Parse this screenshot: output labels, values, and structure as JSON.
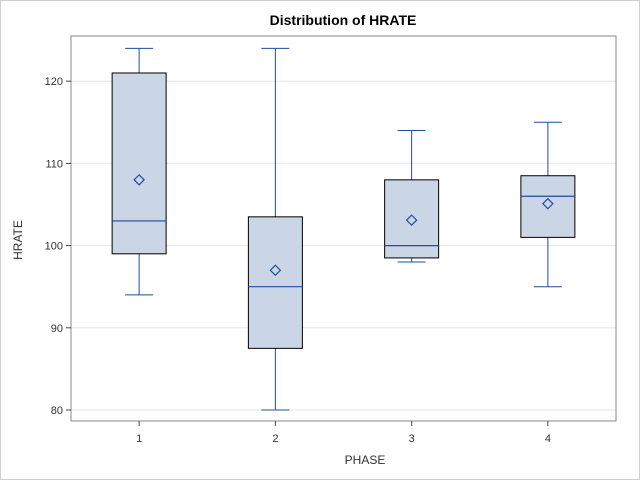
{
  "chart_data": {
    "type": "box",
    "title": "Distribution of HRATE",
    "xlabel": "PHASE",
    "ylabel": "HRATE",
    "categories": [
      "1",
      "2",
      "3",
      "4"
    ],
    "y_ticks": [
      80,
      90,
      100,
      110,
      120
    ],
    "ylim": [
      78.5,
      126
    ],
    "grid": true,
    "boxes": [
      {
        "category": "1",
        "min": 94,
        "q1": 99,
        "median": 103,
        "q3": 121,
        "max": 124,
        "mean": 108
      },
      {
        "category": "2",
        "min": 80,
        "q1": 87.5,
        "median": 95,
        "q3": 103.5,
        "max": 124,
        "mean": 97
      },
      {
        "category": "3",
        "min": 98,
        "q1": 98.5,
        "median": 100,
        "q3": 108,
        "max": 114,
        "mean": 103.1
      },
      {
        "category": "4",
        "min": 95,
        "q1": 101,
        "median": 106,
        "q3": 108.5,
        "max": 115,
        "mean": 105.1
      }
    ],
    "colors": {
      "box_fill": "#cad5e5",
      "box_edge": "#000000",
      "whisker": "#1f4e9c",
      "median": "#1f4e9c",
      "mean_marker": "#1f4e9c",
      "grid": "#e6e6e6"
    }
  }
}
